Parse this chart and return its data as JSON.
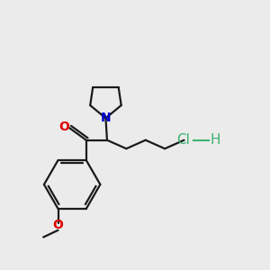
{
  "background_color": "#ebebeb",
  "atom_colors": {
    "O_carbonyl": "#e00000",
    "N": "#0000cc",
    "O_methoxy": "#e00000",
    "Cl_hcl": "#3cb371",
    "H_hcl": "#3cb371"
  },
  "bond_color": "#1a1a1a",
  "bond_width": 1.6,
  "figsize": [
    3.0,
    3.0
  ],
  "dpi": 100,
  "xlim": [
    0,
    10
  ],
  "ylim": [
    0,
    10
  ]
}
